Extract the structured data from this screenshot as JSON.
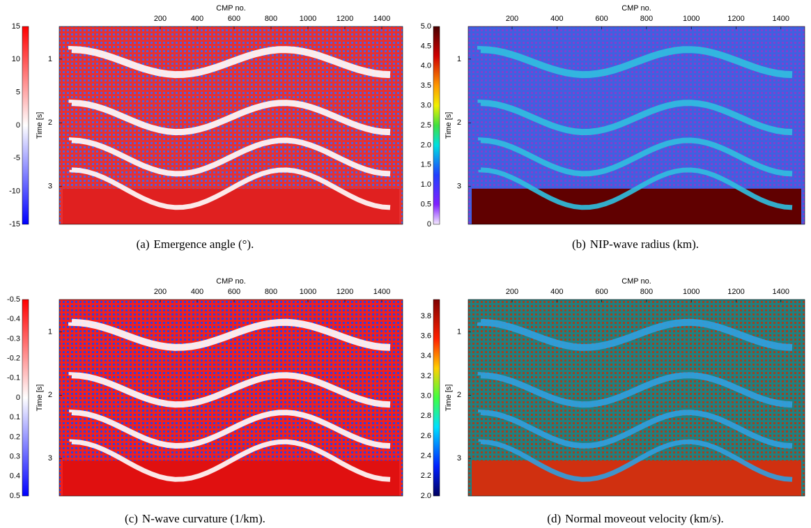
{
  "figure": {
    "panels": [
      {
        "label": "(a)",
        "caption": "Emergence angle (°).",
        "xlabel": "CMP no.",
        "ylabel": "Time [s]",
        "xticks": [
          "200",
          "400",
          "600",
          "800",
          "1000",
          "1200",
          "1400"
        ],
        "yticks": [
          "1",
          "2",
          "3"
        ],
        "colorbar_ticks": [
          "15",
          "10",
          "5",
          "0",
          "-5",
          "-10",
          "-15"
        ]
      },
      {
        "label": "(b)",
        "caption": "NIP-wave radius (km).",
        "xlabel": "CMP no.",
        "ylabel": "Time [s]",
        "xticks": [
          "200",
          "400",
          "600",
          "800",
          "1000",
          "1200",
          "1400"
        ],
        "yticks": [
          "1",
          "2",
          "3"
        ],
        "colorbar_ticks": [
          "5.0",
          "4.5",
          "4.0",
          "3.5",
          "3.0",
          "2.5",
          "2.0",
          "1.5",
          "1.0",
          "0.5",
          "0"
        ]
      },
      {
        "label": "(c)",
        "caption": "N-wave curvature (1/km).",
        "xlabel": "CMP no.",
        "ylabel": "Time [s]",
        "xticks": [
          "200",
          "400",
          "600",
          "800",
          "1000",
          "1200",
          "1400"
        ],
        "yticks": [
          "1",
          "2",
          "3"
        ],
        "colorbar_ticks": [
          "-0.5",
          "-0.4",
          "-0.3",
          "-0.2",
          "-0.1",
          "0",
          "0.1",
          "0.2",
          "0.3",
          "0.4",
          "0.5"
        ]
      },
      {
        "label": "(d)",
        "caption": "Normal moveout velocity (km/s).",
        "xlabel": "CMP no.",
        "ylabel": "Time [s]",
        "xticks": [
          "200",
          "400",
          "600",
          "800",
          "1000",
          "1200",
          "1400"
        ],
        "yticks": [
          "1",
          "2",
          "3"
        ],
        "colorbar_ticks": [
          "3.8",
          "3.6",
          "3.4",
          "3.2",
          "3.0",
          "2.8",
          "2.6",
          "2.4",
          "2.2",
          "2.0"
        ]
      }
    ]
  }
}
